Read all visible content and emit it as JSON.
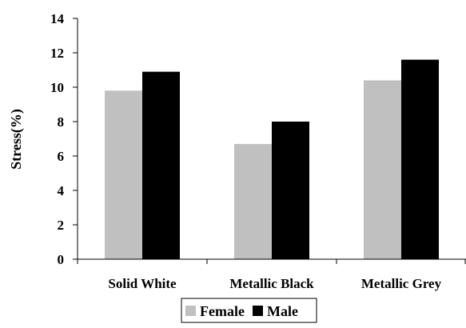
{
  "chart_data": {
    "type": "bar",
    "categories": [
      "Solid White",
      "Metallic Black",
      "Metallic Grey"
    ],
    "series": [
      {
        "name": "Female",
        "values": [
          9.8,
          6.7,
          10.4
        ],
        "color": "#c0c0c0"
      },
      {
        "name": "Male",
        "values": [
          10.9,
          8.0,
          11.6
        ],
        "color": "#000000"
      }
    ],
    "xlabel": "",
    "ylabel": "Stress(%)",
    "ylim": [
      0,
      14
    ],
    "yticks": [
      0,
      2,
      4,
      6,
      8,
      10,
      12,
      14
    ],
    "grid": false,
    "legend_position": "bottom"
  }
}
